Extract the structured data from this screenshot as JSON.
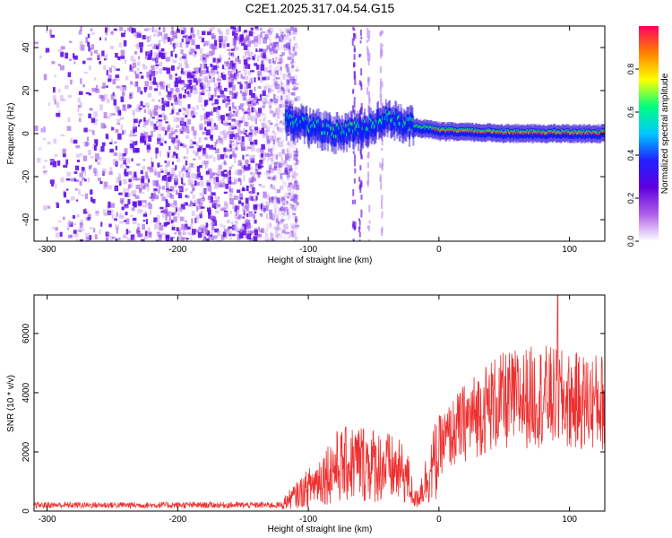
{
  "title": "C2E1.2025.317.04.54.G15",
  "chart_data": [
    {
      "type": "heatmap",
      "xlabel": "Height of straight line (km)",
      "ylabel": "Frequency (Hz)",
      "xlim": [
        -310,
        127
      ],
      "ylim": [
        -50,
        50
      ],
      "xticks": [
        -300,
        -200,
        -100,
        0,
        100
      ],
      "yticks": [
        -40,
        -20,
        0,
        20,
        40
      ],
      "colorbar": {
        "label": "Normalized spectral amplitude",
        "range": [
          0,
          1
        ],
        "ticks": [
          0.0,
          0.2,
          0.4,
          0.6,
          0.8
        ],
        "colormap": [
          "#ffffff",
          "#b060e8",
          "#6000e0",
          "#2020ff",
          "#00c8ff",
          "#00ff80",
          "#ffff00",
          "#ff8000",
          "#ff0060"
        ]
      },
      "features": {
        "noise_region_x": [
          -310,
          -118
        ],
        "signal_trace": [
          {
            "x": -118,
            "f": 6
          },
          {
            "x": -100,
            "f": 3
          },
          {
            "x": -80,
            "f": 0
          },
          {
            "x": -60,
            "f": 2
          },
          {
            "x": -40,
            "f": 7
          },
          {
            "x": -20,
            "f": 3
          },
          {
            "x": 0,
            "f": 1
          },
          {
            "x": 60,
            "f": 0
          },
          {
            "x": 127,
            "f": 0
          }
        ],
        "vertical_streaks_x": [
          -66,
          -61,
          -55,
          -45
        ]
      }
    },
    {
      "type": "line",
      "xlabel": "Height of straight line (km)",
      "ylabel": "SNR (10 * v/v)",
      "xlim": [
        -310,
        127
      ],
      "ylim": [
        0,
        7300
      ],
      "xticks": [
        -300,
        -200,
        -100,
        0,
        100
      ],
      "yticks": [
        0,
        2000,
        4000,
        6000
      ],
      "series_color": "#ee3030",
      "envelope": [
        {
          "x": -310,
          "y": 280
        },
        {
          "x": -120,
          "y": 280
        },
        {
          "x": -100,
          "y": 900
        },
        {
          "x": -80,
          "y": 1700
        },
        {
          "x": -60,
          "y": 1900
        },
        {
          "x": -40,
          "y": 1700
        },
        {
          "x": -25,
          "y": 1400
        },
        {
          "x": -18,
          "y": 400
        },
        {
          "x": 0,
          "y": 2200
        },
        {
          "x": 20,
          "y": 3000
        },
        {
          "x": 40,
          "y": 3600
        },
        {
          "x": 60,
          "y": 3800
        },
        {
          "x": 80,
          "y": 3900
        },
        {
          "x": 100,
          "y": 3700
        },
        {
          "x": 127,
          "y": 3700
        }
      ],
      "peak": {
        "x": 91,
        "y": 7300
      }
    }
  ]
}
